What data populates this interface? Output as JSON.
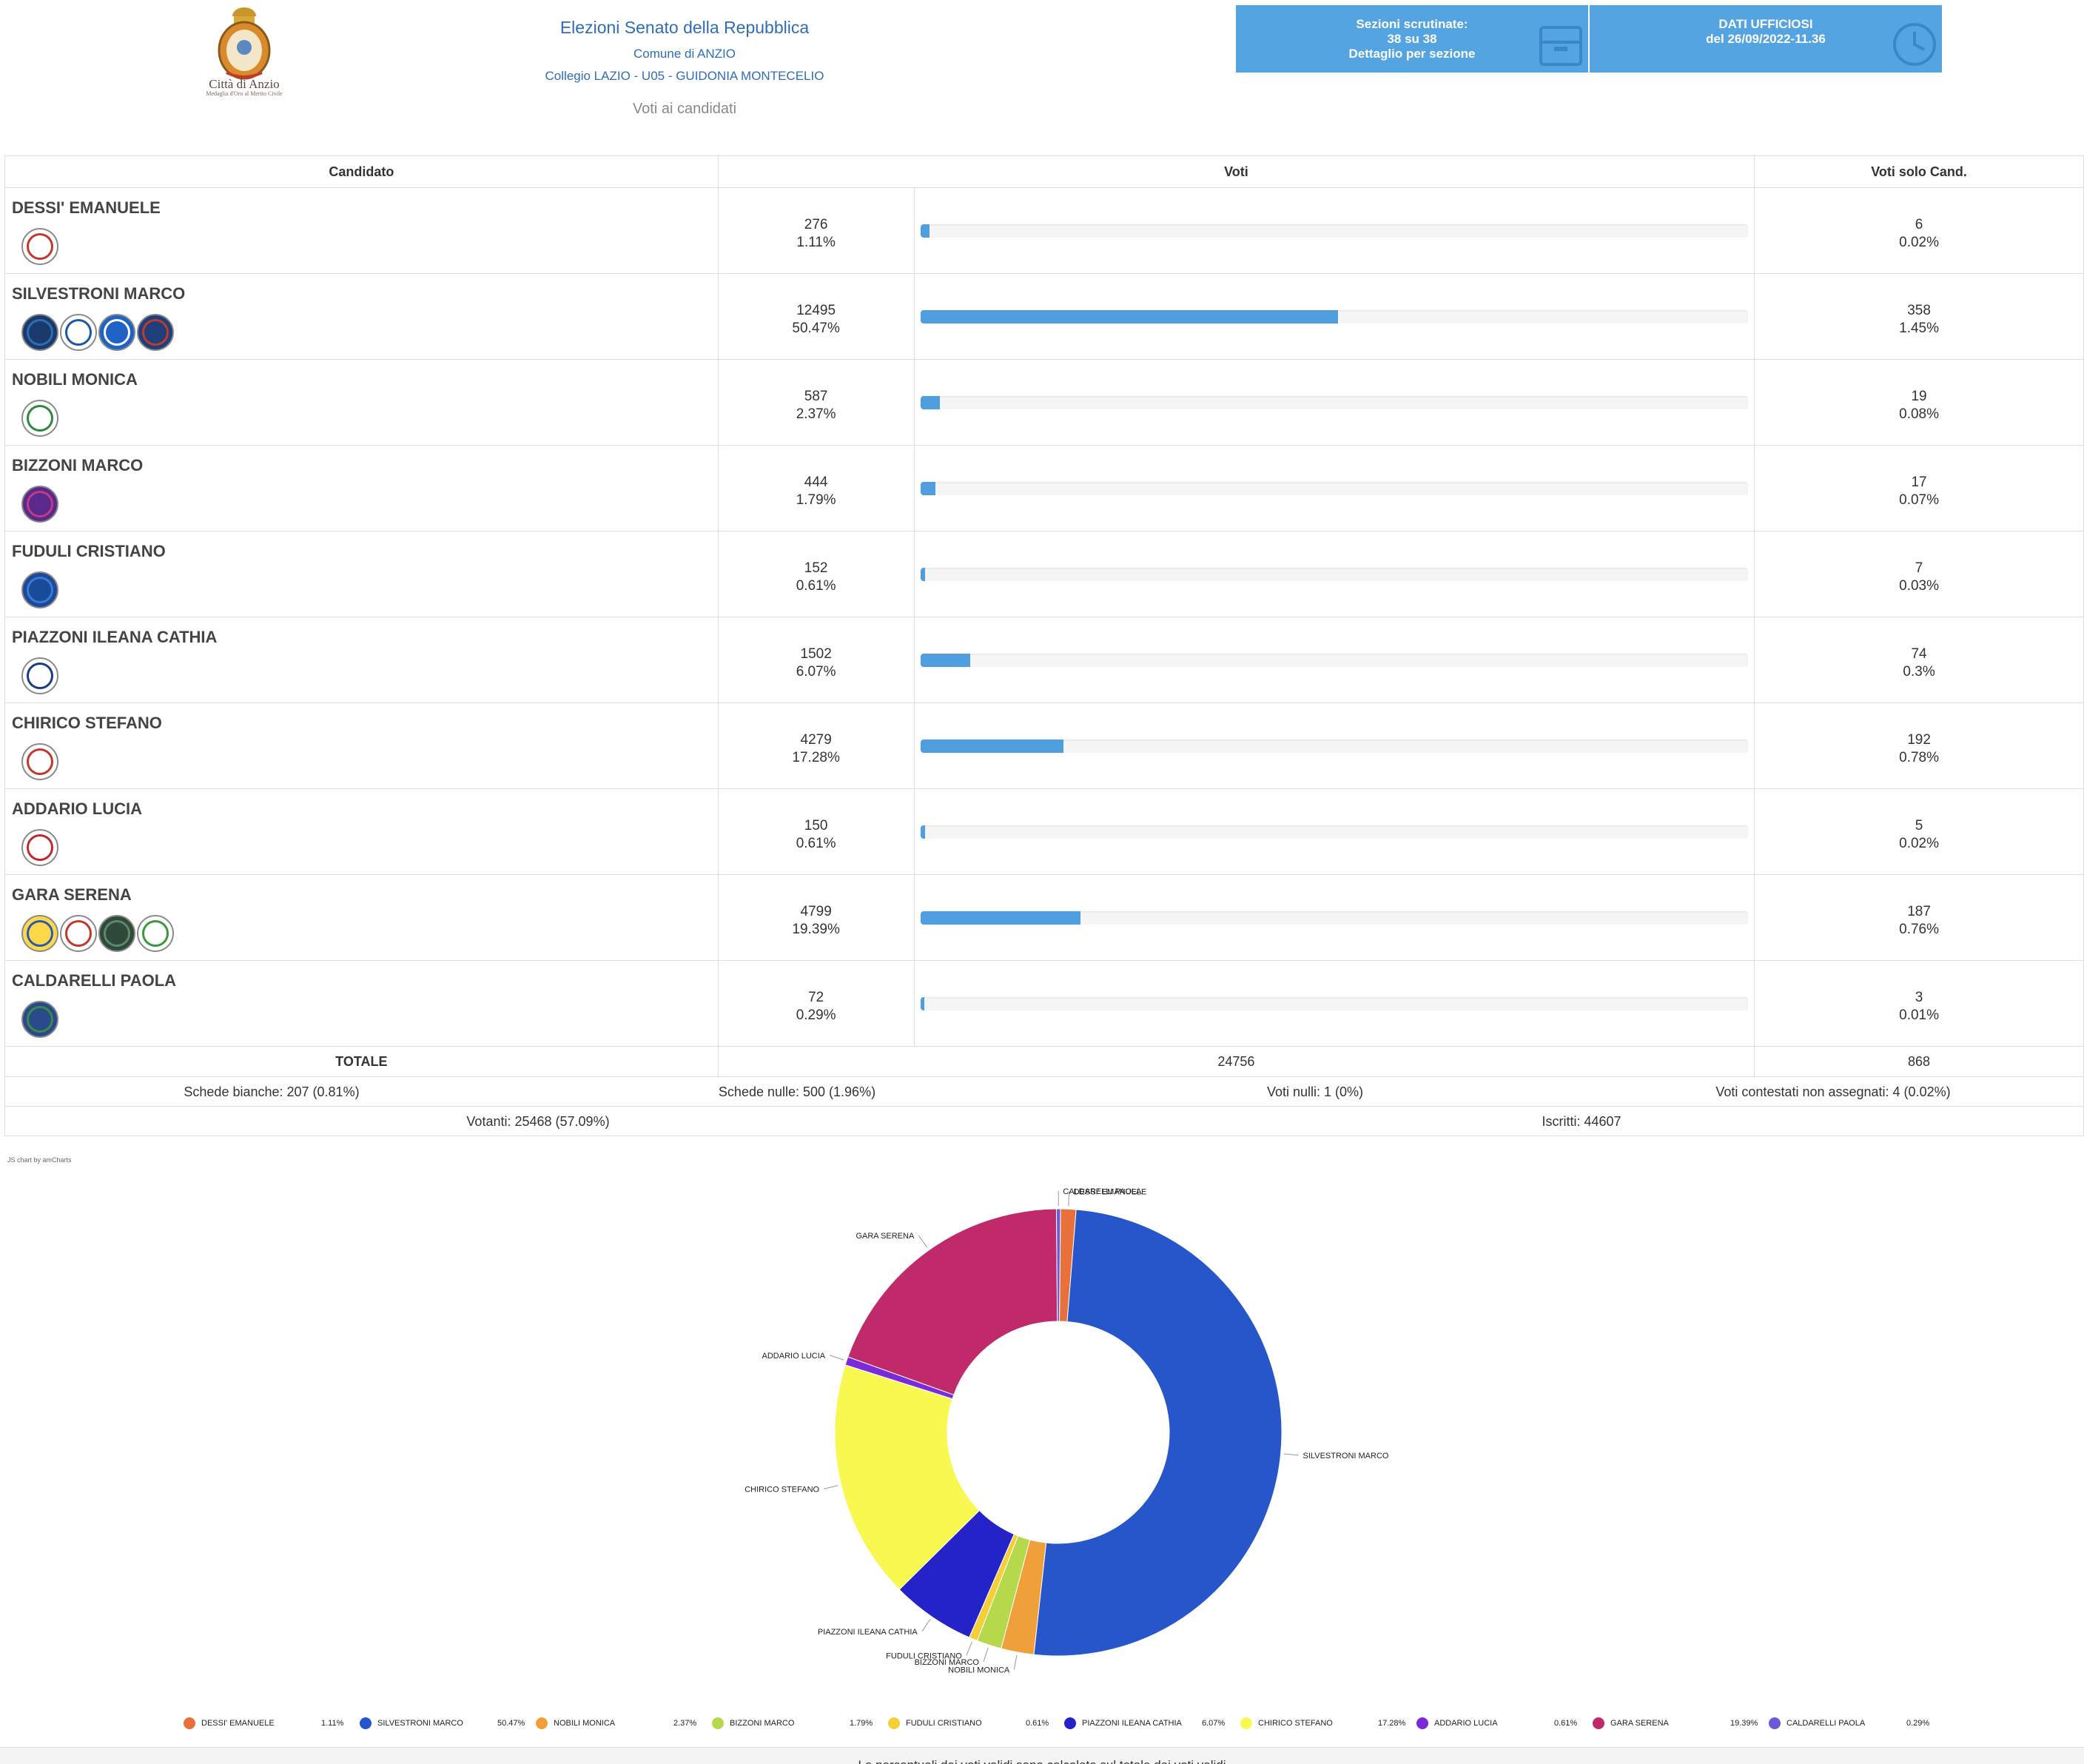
{
  "header": {
    "logo_text": "Città di Anzio",
    "logo_subtext": "Medaglia d'Oro al Merito Civile",
    "title": "Elezioni Senato della Repubblica",
    "comune": "Comune di ANZIO",
    "collegio": "Collegio LAZIO - U05 - GUIDONIA MONTECELIO",
    "subtitle": "Voti ai candidati",
    "box_sezioni": {
      "line1": "Sezioni scrutinate:",
      "line2": "38 su 38",
      "line3": "Dettaglio per sezione",
      "icon": "ballot-box-icon"
    },
    "box_dati": {
      "line1": "DATI UFFICIOSI",
      "line2": "del 26/09/2022-11.36",
      "icon": "clock-icon"
    }
  },
  "table": {
    "col_candidato": "Candidato",
    "col_voti": "Voti",
    "col_solo": "Voti solo Cand.",
    "rows": [
      {
        "name": "DESSI' EMANUELE",
        "votes": "276",
        "pct": "1.11%",
        "bar": 1.11,
        "solo": "6",
        "solo_pct": "0.02%",
        "logos": [
          [
            "#ffffff",
            "#c0392b"
          ]
        ]
      },
      {
        "name": "SILVESTRONI MARCO",
        "votes": "12495",
        "pct": "50.47%",
        "bar": 50.47,
        "solo": "358",
        "solo_pct": "1.45%",
        "logos": [
          [
            "#1a3a6b",
            "#2e6db5"
          ],
          [
            "#ffffff",
            "#1a57a8"
          ],
          [
            "#1d62c4",
            "#ffffff"
          ],
          [
            "#1f3f7a",
            "#c0392b"
          ]
        ]
      },
      {
        "name": "NOBILI MONICA",
        "votes": "587",
        "pct": "2.37%",
        "bar": 2.37,
        "solo": "19",
        "solo_pct": "0.08%",
        "logos": [
          [
            "#ffffff",
            "#2a8a3a"
          ]
        ]
      },
      {
        "name": "BIZZONI MARCO",
        "votes": "444",
        "pct": "1.79%",
        "bar": 1.79,
        "solo": "17",
        "solo_pct": "0.07%",
        "logos": [
          [
            "#5a2a8a",
            "#c03a8a"
          ]
        ]
      },
      {
        "name": "FUDULI CRISTIANO",
        "votes": "152",
        "pct": "0.61%",
        "bar": 0.61,
        "solo": "7",
        "solo_pct": "0.03%",
        "logos": [
          [
            "#1a4a9a",
            "#3a7ad0"
          ]
        ]
      },
      {
        "name": "PIAZZONI ILEANA CATHIA",
        "votes": "1502",
        "pct": "6.07%",
        "bar": 6.07,
        "solo": "74",
        "solo_pct": "0.3%",
        "logos": [
          [
            "#ffffff",
            "#1a3a8a"
          ]
        ]
      },
      {
        "name": "CHIRICO STEFANO",
        "votes": "4279",
        "pct": "17.28%",
        "bar": 17.28,
        "solo": "192",
        "solo_pct": "0.78%",
        "logos": [
          [
            "#ffffff",
            "#c0392b"
          ]
        ]
      },
      {
        "name": "ADDARIO LUCIA",
        "votes": "150",
        "pct": "0.61%",
        "bar": 0.61,
        "solo": "5",
        "solo_pct": "0.02%",
        "logos": [
          [
            "#ffffff",
            "#c0282b"
          ]
        ]
      },
      {
        "name": "GARA SERENA",
        "votes": "4799",
        "pct": "19.39%",
        "bar": 19.39,
        "solo": "187",
        "solo_pct": "0.76%",
        "logos": [
          [
            "#ffd84a",
            "#2a5ab0"
          ],
          [
            "#ffffff",
            "#c0392b"
          ],
          [
            "#2f4a3a",
            "#5a8a6a"
          ],
          [
            "#ffffff",
            "#3a9a3a"
          ]
        ]
      },
      {
        "name": "CALDARELLI PAOLA",
        "votes": "72",
        "pct": "0.29%",
        "bar": 0.29,
        "solo": "3",
        "solo_pct": "0.01%",
        "logos": [
          [
            "#2a4a8a",
            "#3a8a4a"
          ]
        ]
      }
    ],
    "totale_label": "TOTALE",
    "totale_votes": "24756",
    "totale_solo": "868"
  },
  "summary": {
    "bianche": "Schede bianche: 207 (0.81%)",
    "nulle": "Schede nulle: 500 (1.96%)",
    "voti_nulli": "Voti nulli: 1 (0%)",
    "contestati": "Voti contestati non assegnati: 4 (0.02%)",
    "votanti": "Votanti: 25468 (57.09%)",
    "iscritti": "Iscritti: 44607"
  },
  "chart_credit": "JS chart by amCharts",
  "chart_data": {
    "type": "pie",
    "categories": [
      "DESSI' EMANUELE",
      "SILVESTRONI MARCO",
      "NOBILI MONICA",
      "BIZZONI MARCO",
      "FUDULI CRISTIANO",
      "PIAZZONI ILEANA CATHIA",
      "CHIRICO STEFANO",
      "ADDARIO LUCIA",
      "GARA SERENA",
      "CALDARELLI PAOLA"
    ],
    "values": [
      276,
      12495,
      587,
      444,
      152,
      1502,
      4279,
      150,
      4799,
      72
    ],
    "percent_labels": [
      "1.11%",
      "50.47%",
      "2.37%",
      "1.79%",
      "0.61%",
      "6.07%",
      "17.28%",
      "0.61%",
      "19.39%",
      "0.29%"
    ],
    "colors": [
      "#e8703a",
      "#2656c9",
      "#f0a03a",
      "#b5d94a",
      "#f5cf3a",
      "#2323c8",
      "#f8f850",
      "#7a2ad8",
      "#c02a6a",
      "#6a5ad8"
    ],
    "legend_position": "bottom"
  },
  "footer_note": "Le percentuali dei voti validi sono calcolate sul totale dei voti validi"
}
